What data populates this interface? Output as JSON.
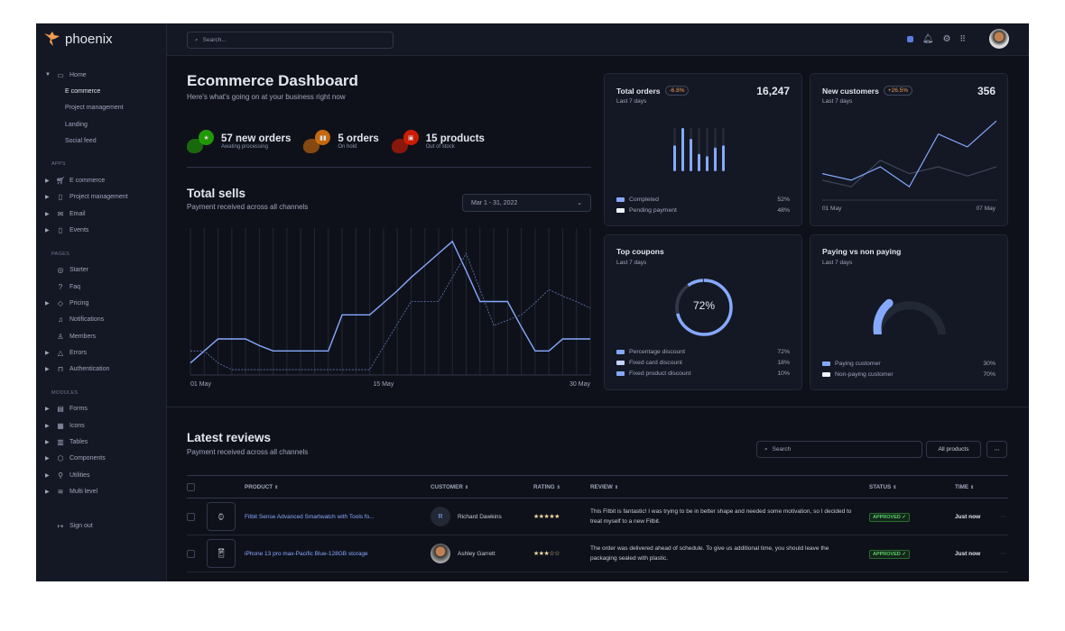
{
  "brand": {
    "name": "phoenix"
  },
  "search": {
    "placeholder": "Search..."
  },
  "sidebar": {
    "home": {
      "label": "Home",
      "children": [
        "E commerce",
        "Project management",
        "Landing",
        "Social feed"
      ]
    },
    "sections": [
      {
        "title": "APPS",
        "items": [
          {
            "label": "E commerce",
            "icon": "cart-icon"
          },
          {
            "label": "Project management",
            "icon": "clipboard-icon"
          },
          {
            "label": "Email",
            "icon": "mail-icon"
          },
          {
            "label": "Events",
            "icon": "clipboard-icon"
          }
        ]
      },
      {
        "title": "PAGES",
        "items": [
          {
            "label": "Starter",
            "icon": "compass-icon"
          },
          {
            "label": "Faq",
            "icon": "help-icon"
          },
          {
            "label": "Pricing",
            "icon": "tag-icon"
          },
          {
            "label": "Notifications",
            "icon": "bell-icon"
          },
          {
            "label": "Members",
            "icon": "users-icon"
          },
          {
            "label": "Errors",
            "icon": "alert-icon"
          },
          {
            "label": "Authentication",
            "icon": "lock-icon"
          }
        ]
      },
      {
        "title": "MODULES",
        "items": [
          {
            "label": "Forms",
            "icon": "file-icon"
          },
          {
            "label": "Icons",
            "icon": "grid-icon"
          },
          {
            "label": "Tables",
            "icon": "columns-icon"
          },
          {
            "label": "Components",
            "icon": "package-icon"
          },
          {
            "label": "Utilities",
            "icon": "tool-icon"
          },
          {
            "label": "Multi level",
            "icon": "layers-icon"
          }
        ]
      }
    ],
    "signout": "Sign out"
  },
  "header": {
    "title": "Ecommerce Dashboard",
    "subtitle": "Here's what's going on at your business right now"
  },
  "stats": [
    {
      "value": "57 new orders",
      "label": "Awating processing",
      "color": "#25b003"
    },
    {
      "value": "5 orders",
      "label": "On hold",
      "color": "#e5780b"
    },
    {
      "value": "15 products",
      "label": "Out of stock",
      "color": "#ec1f00"
    }
  ],
  "total_sells": {
    "title": "Total sells",
    "subtitle": "Payment received across all channels",
    "date_range": "Mar 1 - 31, 2022"
  },
  "colors": {
    "accent": "#85a9ff",
    "bg": "#0f111a",
    "card": "#141824"
  },
  "chart_data": [
    {
      "type": "line",
      "x": [
        1,
        2,
        3,
        4,
        5,
        6,
        7,
        8,
        9,
        10,
        11,
        12,
        13,
        14,
        15,
        16,
        17,
        18,
        19,
        20,
        21,
        22,
        23,
        24,
        25,
        26,
        27,
        28,
        29,
        30
      ],
      "xticks": [
        "01 May",
        "15 May",
        "30 May"
      ],
      "grid": "vertical",
      "series": [
        {
          "style": "solid",
          "values": [
            9,
            18,
            27,
            27,
            27,
            22,
            18,
            18,
            18,
            18,
            18,
            45,
            45,
            45,
            54,
            63,
            73,
            82,
            91,
            100,
            78,
            55,
            55,
            55,
            36,
            18,
            18,
            27,
            27,
            27
          ]
        },
        {
          "style": "dashed",
          "values": [
            18,
            18,
            9,
            4,
            4,
            4,
            4,
            4,
            4,
            4,
            4,
            4,
            4,
            4,
            21,
            38,
            55,
            55,
            55,
            73,
            91,
            64,
            37,
            41,
            45,
            54,
            64,
            59,
            55,
            50
          ]
        }
      ]
    },
    {
      "type": "bar",
      "title": "Total orders",
      "values": [
        60,
        100,
        75,
        40,
        35,
        55,
        60
      ],
      "ylim": [
        0,
        100
      ]
    },
    {
      "type": "line",
      "title": "New customers",
      "xticks": [
        "01 May",
        "07 May"
      ],
      "series": [
        {
          "style": "solid",
          "values": [
            89,
            67,
            112,
            45,
            222,
            179,
            266
          ]
        },
        {
          "style": "muted",
          "values": [
            67,
            45,
            134,
            89,
            112,
            81,
            112
          ]
        }
      ]
    },
    {
      "type": "pie",
      "title": "Top coupons",
      "center_label": "72%",
      "values": [
        72,
        18,
        10
      ]
    },
    {
      "type": "gauge",
      "title": "Paying vs non paying",
      "values": [
        30,
        70
      ]
    }
  ],
  "cards": {
    "orders": {
      "title": "Total orders",
      "badge": "-6.8%",
      "sub": "Last 7 days",
      "value": "16,247",
      "legend": [
        {
          "label": "Completed",
          "value": "52%",
          "color": "#85a9ff"
        },
        {
          "label": "Pending payment",
          "value": "48%",
          "color": "#eff2f6"
        }
      ]
    },
    "customers": {
      "title": "New customers",
      "badge": "+26.5%",
      "sub": "Last 7 days",
      "value": "356",
      "x_start": "01 May",
      "x_end": "07 May"
    },
    "coupons": {
      "title": "Top coupons",
      "sub": "Last 7 days",
      "center": "72%",
      "legend": [
        {
          "label": "Percentage discount",
          "value": "72%",
          "color": "#85a9ff"
        },
        {
          "label": "Fixed card discount",
          "value": "18%",
          "color": "#c5d5ff"
        },
        {
          "label": "Fixed product discount",
          "value": "10%",
          "color": "#85a9ff"
        }
      ]
    },
    "paying": {
      "title": "Paying vs non paying",
      "sub": "Last 7 days",
      "legend": [
        {
          "label": "Paying customer",
          "value": "30%",
          "color": "#85a9ff"
        },
        {
          "label": "Non-paying customer",
          "value": "70%",
          "color": "#eff2f6"
        }
      ]
    }
  },
  "reviews": {
    "title": "Latest reviews",
    "subtitle": "Payment received across all channels",
    "search_placeholder": "Search",
    "filter": "All products",
    "more": "⋯",
    "columns": [
      "PRODUCT",
      "CUSTOMER",
      "RATING",
      "REVIEW",
      "STATUS",
      "TIME"
    ],
    "rows": [
      {
        "product": "Fitbit Sense Advanced Smartwatch with Tools fo...",
        "customer": "Richard Dawkins",
        "initial": "R",
        "rating": 5,
        "stars": "★★★★★",
        "review": "This Fitbit is fantastic! I was trying to be in better shape and needed some motivation, so I decided to treat myself to a new Fitbit.",
        "status": "APPROVED ✓",
        "time": "Just now"
      },
      {
        "product": "iPhone 13 pro max-Pacific Blue-128GB storage",
        "customer": "Ashley Garrett",
        "initial": "",
        "rating": 3,
        "stars": "★★★☆☆",
        "review": "The order was delivered ahead of schedule. To give us additional time, you should leave the packaging sealed with plastic.",
        "status": "APPROVED ✓",
        "time": "Just now"
      }
    ]
  }
}
